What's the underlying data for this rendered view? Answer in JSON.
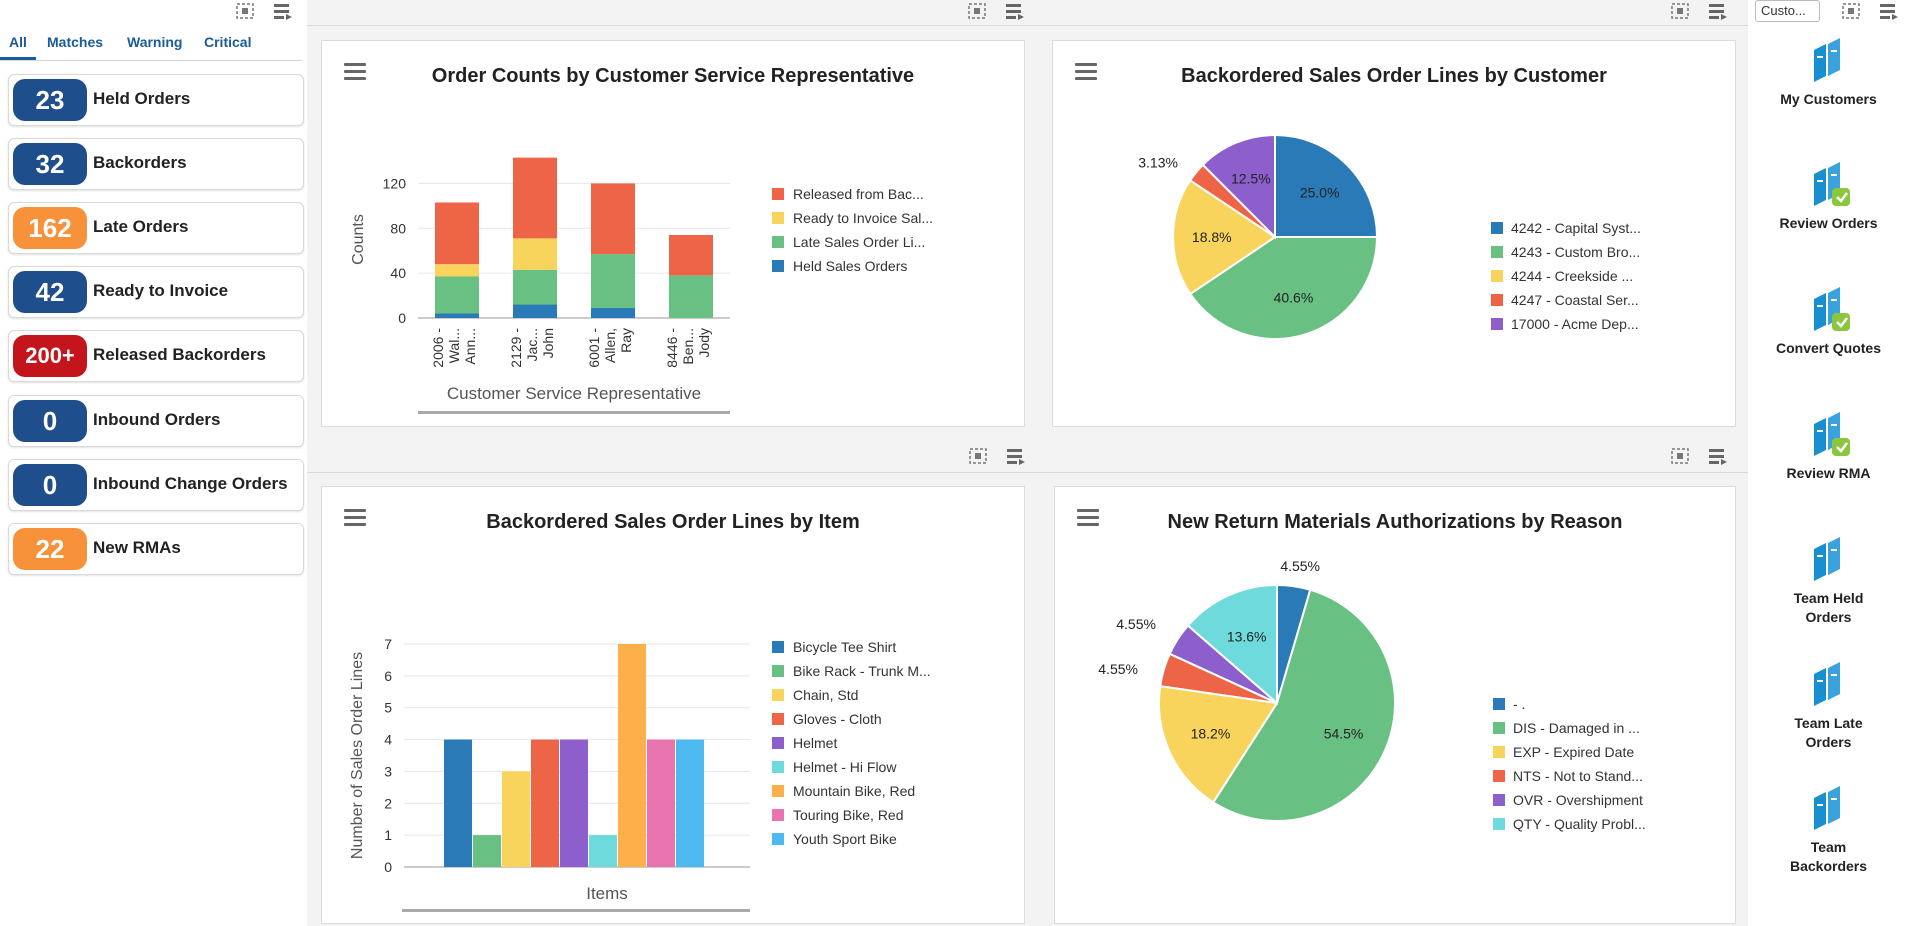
{
  "alerts": {
    "tabs": [
      "All",
      "Matches",
      "Warning",
      "Critical"
    ],
    "items": [
      {
        "count": "23",
        "label": "Held Orders",
        "color": "#1f4e8c"
      },
      {
        "count": "32",
        "label": "Backorders",
        "color": "#1f4e8c"
      },
      {
        "count": "162",
        "label": "Late Orders",
        "color": "#f7923b"
      },
      {
        "count": "42",
        "label": "Ready to Invoice",
        "color": "#1f4e8c"
      },
      {
        "count": "200+",
        "label": "Released Backorders",
        "color": "#c4151c"
      },
      {
        "count": "0",
        "label": "Inbound Orders",
        "color": "#1f4e8c"
      },
      {
        "count": "0",
        "label": "Inbound Change Orders",
        "color": "#1f4e8c"
      },
      {
        "count": "22",
        "label": "New RMAs",
        "color": "#f7923b"
      }
    ]
  },
  "launchpad": {
    "header": "Custo...",
    "items": [
      "My Customers",
      "Review Orders",
      "Convert Quotes",
      "Review RMA",
      "Team Held Orders",
      "Team Late Orders",
      "Team Backorders"
    ]
  },
  "chart_data": [
    {
      "id": "csr",
      "type": "bar",
      "stacked": true,
      "title": "Order Counts by Customer Service Representative",
      "xlabel": "Customer Service Representative",
      "ylabel": "Counts",
      "ylim": [
        0,
        140
      ],
      "yticks": [
        0,
        40,
        80,
        120
      ],
      "categories": [
        "2006 - Wal... Ann...",
        "2129 - Jac... John",
        "6001 - Allen, Ray",
        "8446 - Ben... Jody"
      ],
      "category_lines": [
        [
          "2006 -",
          "Wal...",
          "Ann..."
        ],
        [
          "2129 -",
          "Jac...",
          "John"
        ],
        [
          "6001 -",
          "Allen,",
          "Ray"
        ],
        [
          "8446 -",
          "Ben...",
          "Jody"
        ]
      ],
      "series": [
        {
          "name": "Held Sales Orders",
          "color": "#2a7ab8",
          "values": [
            4,
            12,
            9,
            0
          ]
        },
        {
          "name": "Late Sales Order Li...",
          "color": "#68c182",
          "values": [
            33,
            31,
            48,
            38
          ]
        },
        {
          "name": "Ready to Invoice Sal...",
          "color": "#f9d45c",
          "values": [
            11,
            28,
            0,
            0
          ]
        },
        {
          "name": "Released from Bac...",
          "color": "#ee6446",
          "values": [
            55,
            72,
            63,
            36
          ]
        }
      ],
      "legend_order": [
        "Released from Bac...",
        "Ready to Invoice Sal...",
        "Late Sales Order Li...",
        "Held Sales Orders"
      ]
    },
    {
      "id": "customer",
      "type": "pie",
      "title": "Backordered Sales Order Lines by Customer",
      "slices": [
        {
          "name": "4242 - Capital Syst...",
          "value": 25.0,
          "label": "25.0%",
          "color": "#2a7ab8"
        },
        {
          "name": "4243 - Custom Bro...",
          "value": 40.6,
          "label": "40.6%",
          "color": "#68c182"
        },
        {
          "name": "4244 - Creekside ...",
          "value": 18.8,
          "label": "18.8%",
          "color": "#f9d45c"
        },
        {
          "name": "4247 - Coastal Ser...",
          "value": 3.13,
          "label": "3.13%",
          "color": "#ee6446"
        },
        {
          "name": "17000 - Acme Dep...",
          "value": 12.5,
          "label": "12.5%",
          "color": "#8c5fcc"
        }
      ]
    },
    {
      "id": "item",
      "type": "bar",
      "title": "Backordered Sales Order Lines by Item",
      "xlabel": "Items",
      "ylabel": "Number of Sales Order Lines",
      "ylim": [
        0,
        7
      ],
      "yticks": [
        0,
        1,
        2,
        3,
        4,
        5,
        6,
        7
      ],
      "series": [
        {
          "name": "Bicycle Tee Shirt",
          "value": 4,
          "color": "#2a7ab8"
        },
        {
          "name": "Bike Rack - Trunk M...",
          "value": 1,
          "color": "#68c182"
        },
        {
          "name": "Chain, Std",
          "value": 3,
          "color": "#f9d45c"
        },
        {
          "name": "Gloves - Cloth",
          "value": 4,
          "color": "#ee6446"
        },
        {
          "name": "Helmet",
          "value": 4,
          "color": "#8c5fcc"
        },
        {
          "name": "Helmet - Hi Flow",
          "value": 1,
          "color": "#6fdadb"
        },
        {
          "name": "Mountain Bike, Red",
          "value": 7,
          "color": "#fdaf4a"
        },
        {
          "name": "Touring Bike, Red",
          "value": 4,
          "color": "#e874b0"
        },
        {
          "name": "Youth Sport Bike",
          "value": 4,
          "color": "#4cbaf0"
        }
      ]
    },
    {
      "id": "rma",
      "type": "pie",
      "title": "New Return Materials Authorizations by Reason",
      "slices": [
        {
          "name": "- .",
          "value": 4.55,
          "label": "4.55%",
          "color": "#2a7ab8"
        },
        {
          "name": "DIS - Damaged in ...",
          "value": 54.5,
          "label": "54.5%",
          "color": "#68c182"
        },
        {
          "name": "EXP - Expired Date",
          "value": 18.2,
          "label": "18.2%",
          "color": "#f9d45c"
        },
        {
          "name": "NTS - Not to Stand...",
          "value": 4.55,
          "label": "4.55%",
          "color": "#ee6446"
        },
        {
          "name": "OVR - Overshipment",
          "value": 4.55,
          "label": "4.55%",
          "color": "#8c5fcc"
        },
        {
          "name": "QTY - Quality Probl...",
          "value": 13.6,
          "label": "13.6%",
          "color": "#6fdadb"
        }
      ]
    }
  ]
}
